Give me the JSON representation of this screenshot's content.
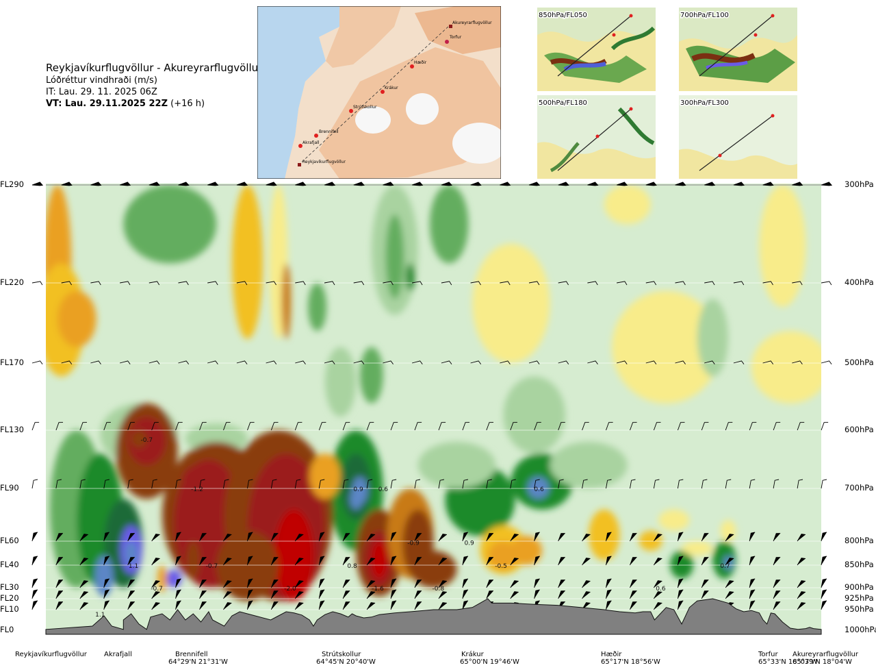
{
  "header": {
    "title": "Reykjavíkurflugvöllur - Akureyrarflugvöllur",
    "subtitle": "Lóðréttur vindhraði (m/s)",
    "it": "IT: Lau. 29. 11. 2025 06Z",
    "vt": "VT: Lau. 29.11.2025 22Z",
    "vt_offset": "(+16 h)"
  },
  "map": {
    "places": [
      "Akureyrarflugvöllur",
      "Torfur",
      "Hæðir",
      "Krákur",
      "Strútskollur",
      "Brennifell",
      "Akrafjall",
      "Reykjavíkurflugvöllur"
    ]
  },
  "insets": [
    {
      "label": "850hPa/FL050"
    },
    {
      "label": "700hPa/FL100"
    },
    {
      "label": "500hPa/FL180"
    },
    {
      "label": "300hPa/FL300"
    }
  ],
  "chart_data": {
    "type": "heatmap",
    "title": "Reykjavíkurflugvöllur - Akureyrarflugvöllur",
    "variable": "Lóðréttur vindhraði (m/s)",
    "y_left_ticks": [
      "FL290",
      "FL220",
      "FL170",
      "FL130",
      "FL90",
      "FL60",
      "FL40",
      "FL30",
      "FL20",
      "FL10",
      "FL0"
    ],
    "y_right_ticks": [
      "300hPa",
      "400hPa",
      "500hPa",
      "600hPa",
      "700hPa",
      "800hPa",
      "850hPa",
      "900hPa",
      "925hPa",
      "950hPa",
      "1000hPa"
    ],
    "pressure_levels_hpa": [
      300,
      400,
      500,
      600,
      700,
      800,
      850,
      900,
      925,
      950,
      1000
    ],
    "waypoints": [
      {
        "name": "Reykjavíkurflugvöllur",
        "coord": ""
      },
      {
        "name": "Akrafjall",
        "coord": ""
      },
      {
        "name": "Brennifell",
        "coord": "64°29'N 21°31'W"
      },
      {
        "name": "Strútskollur",
        "coord": "64°45'N 20°40'W"
      },
      {
        "name": "Krákur",
        "coord": "65°00'N 19°46'W"
      },
      {
        "name": "Hæðir",
        "coord": "65°17'N 18°56'W"
      },
      {
        "name": "Torfur",
        "coord": "65°33'N 18°07'W"
      },
      {
        "name": "Akureyrarflugvöllur",
        "coord": "65°39'N 18°04'W"
      }
    ],
    "annotations": [
      {
        "text": "-0.7",
        "x": 0.13,
        "hpa": 615
      },
      {
        "text": "-1.2",
        "x": 0.195,
        "hpa": 700
      },
      {
        "text": "0.9",
        "x": 0.403,
        "hpa": 700
      },
      {
        "text": "0.6",
        "x": 0.435,
        "hpa": 700
      },
      {
        "text": "0.6",
        "x": 0.636,
        "hpa": 700
      },
      {
        "text": "1.1",
        "x": 0.113,
        "hpa": 850
      },
      {
        "text": "-0.7",
        "x": 0.214,
        "hpa": 850
      },
      {
        "text": "0.8",
        "x": 0.395,
        "hpa": 850
      },
      {
        "text": "-0.9",
        "x": 0.474,
        "hpa": 802
      },
      {
        "text": "0.9",
        "x": 0.546,
        "hpa": 802
      },
      {
        "text": "-0.5",
        "x": 0.587,
        "hpa": 850
      },
      {
        "text": "0.7",
        "x": 0.876,
        "hpa": 850
      },
      {
        "text": "-0.7",
        "x": 0.143,
        "hpa": 900
      },
      {
        "text": "-2.0",
        "x": 0.315,
        "hpa": 900
      },
      {
        "text": "-1.6",
        "x": 0.428,
        "hpa": 900
      },
      {
        "text": "-0.8",
        "x": 0.506,
        "hpa": 900
      },
      {
        "text": "0.6",
        "x": 0.793,
        "hpa": 900
      },
      {
        "text": "1.1",
        "x": 0.07,
        "hpa": 960
      }
    ],
    "color_levels": [
      {
        "range": "<-1.5",
        "color": "#c00000"
      },
      {
        "range": "-1.5 to -1.0",
        "color": "#9b1b1b"
      },
      {
        "range": "-1.0 to -0.6",
        "color": "#8a3d10"
      },
      {
        "range": "-0.6 to -0.4",
        "color": "#c87a18"
      },
      {
        "range": "-0.4 to -0.2",
        "color": "#eaa020"
      },
      {
        "range": "-0.2 to -0.1",
        "color": "#f2c020"
      },
      {
        "range": "-0.1 to 0",
        "color": "#f8ec8a"
      },
      {
        "range": "0 to 0.1",
        "color": "#d8ecd2"
      },
      {
        "range": "0.1 to 0.2",
        "color": "#a9d3a0"
      },
      {
        "range": "0.2 to 0.4",
        "color": "#63ad5e"
      },
      {
        "range": "0.4 to 0.6",
        "color": "#1f8a2a"
      },
      {
        "range": "0.6 to 1.0",
        "color": "#1a6a38"
      },
      {
        "range": "1.0 to 1.5",
        "color": "#5b86c6"
      },
      {
        "range": ">1.5",
        "color": "#6a5be8"
      }
    ],
    "terrain_color": "#808080"
  }
}
